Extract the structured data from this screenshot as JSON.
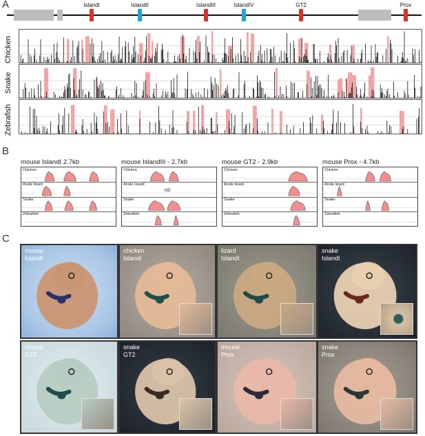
{
  "panel_a": {
    "letter": "A",
    "markers": [
      {
        "label": "IslandI",
        "color": "#d8342a"
      },
      {
        "label": "IslandII",
        "color": "#1fa3dc"
      },
      {
        "label": "IslandIII",
        "color": "#d8342a"
      },
      {
        "label": "IslandIV",
        "color": "#1fa3dc"
      },
      {
        "label": "GT2",
        "color": "#d8342a"
      },
      {
        "label": "Prox",
        "color": "#d8342a"
      }
    ],
    "tracks": [
      "Chicken",
      "Snake",
      "Zebrafish"
    ],
    "colors": {
      "peak": "#111111",
      "conserved": "#f2a5a5",
      "exon": "#8a8ad8",
      "gene_box": "#bdbdbd"
    }
  },
  "panel_b": {
    "letter": "B",
    "plots": [
      {
        "title": "mouse IslandI 2.7kb",
        "rows": [
          "Chicken",
          "Anole lizard",
          "Snake",
          "Zebrafish"
        ],
        "note": ""
      },
      {
        "title": "mouse IslandIII - 2.7kb",
        "rows": [
          "Chicken",
          "Anole Lizard",
          "Snake",
          "Zebrafish"
        ],
        "note": "ND"
      },
      {
        "title": "mouse GT2 - 2.9kb",
        "rows": [
          "Chicken",
          "Anole lizard",
          "Snake",
          "Zebrafish"
        ],
        "note": ""
      },
      {
        "title": "mouse Prox - 4.7kb",
        "rows": [
          "Chicken",
          "Anole lizard",
          "Snake",
          "Zebrafish"
        ],
        "note": ""
      }
    ]
  },
  "panel_c": {
    "letter": "C",
    "photos": [
      {
        "line1": "mouse",
        "line2": "IslandI"
      },
      {
        "line1": "chicken",
        "line2": "IslandI"
      },
      {
        "line1": "lizard",
        "line2": "IslandI"
      },
      {
        "line1": "snake",
        "line2": "IslandI"
      },
      {
        "line1": "mouse",
        "line2": "GT2"
      },
      {
        "line1": "snake",
        "line2": "GT2"
      },
      {
        "line1": "mouse",
        "line2": "Prox"
      },
      {
        "line1": "snake",
        "line2": "Prox"
      }
    ]
  }
}
